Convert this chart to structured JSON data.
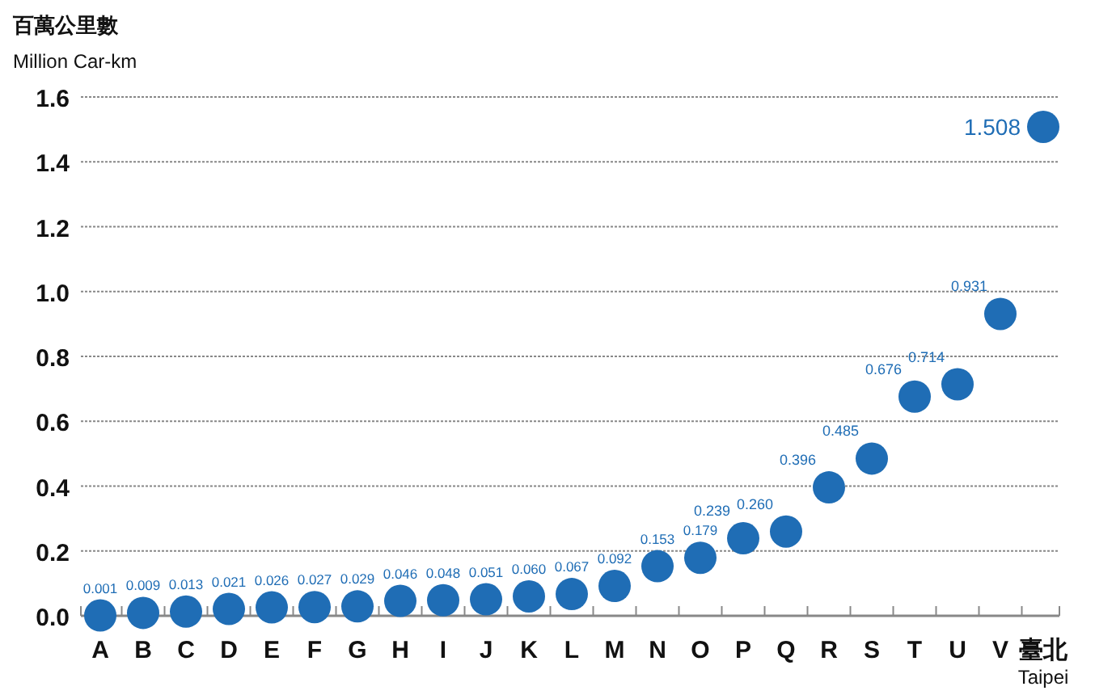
{
  "chart_data": {
    "type": "scatter",
    "ylabel": "百萬公里數\nMillion Car-km",
    "categories": [
      "A",
      "B",
      "C",
      "D",
      "E",
      "F",
      "G",
      "H",
      "I",
      "J",
      "K",
      "L",
      "M",
      "N",
      "O",
      "P",
      "Q",
      "R",
      "S",
      "T",
      "U",
      "V",
      "臺北\nTaipei"
    ],
    "series": [
      {
        "color": "#1f6db5",
        "marker": "circle",
        "values": [
          0.001,
          0.009,
          0.013,
          0.021,
          0.026,
          0.027,
          0.029,
          0.046,
          0.048,
          0.051,
          0.06,
          0.067,
          0.092,
          0.153,
          0.179,
          0.239,
          0.26,
          0.396,
          0.485,
          0.676,
          0.714,
          0.931,
          1.508
        ],
        "value_labels": [
          "0.001",
          "0.009",
          "0.013",
          "0.021",
          "0.026",
          "0.027",
          "0.029",
          "0.046",
          "0.048",
          "0.051",
          "0.060",
          "0.067",
          "0.092",
          "0.153",
          "0.179",
          "0.239",
          "0.260",
          "0.396",
          "0.485",
          "0.676",
          "0.714",
          "0.931",
          "1.508"
        ]
      }
    ],
    "ylim": [
      0,
      1.6
    ],
    "yticks": [
      {
        "value": 0,
        "label": "0.0"
      },
      {
        "value": 0.2,
        "label": "0.2"
      },
      {
        "value": 0.4,
        "label": "0.4"
      },
      {
        "value": 0.6,
        "label": "0.6"
      },
      {
        "value": 0.8,
        "label": "0.8"
      },
      {
        "value": 1.0,
        "label": "1.0"
      },
      {
        "value": 1.2,
        "label": "1.2"
      },
      {
        "value": 1.4,
        "label": "1.4"
      },
      {
        "value": 1.6,
        "label": "1.6"
      }
    ],
    "grid": "y"
  }
}
